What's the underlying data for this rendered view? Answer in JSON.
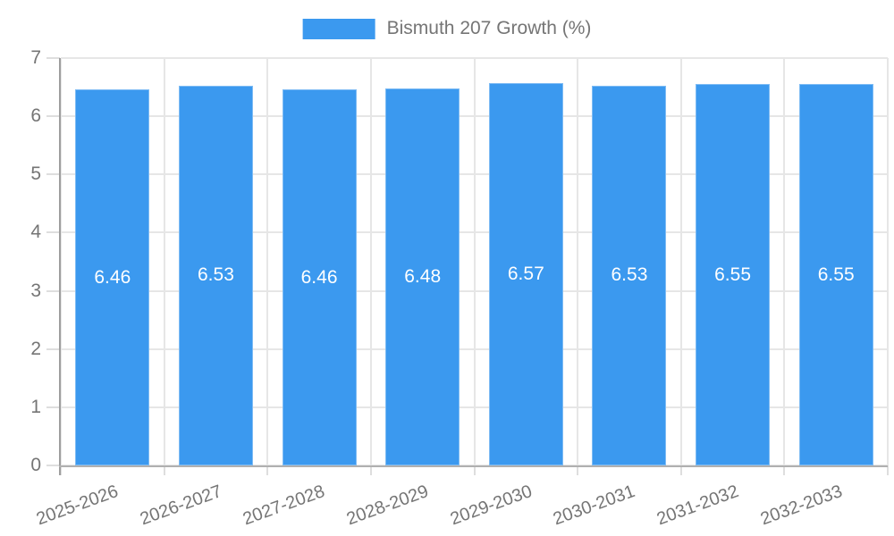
{
  "chart_data": {
    "type": "bar",
    "title": "Bismuth 207 Growth (%)",
    "categories": [
      "2025-2026",
      "2026-2027",
      "2027-2028",
      "2028-2029",
      "2029-2030",
      "2030-2031",
      "2031-2032",
      "2032-2033"
    ],
    "values": [
      6.46,
      6.53,
      6.46,
      6.48,
      6.57,
      6.53,
      6.55,
      6.55
    ],
    "value_labels": [
      "6.46",
      "6.53",
      "6.46",
      "6.48",
      "6.57",
      "6.53",
      "6.55",
      "6.55"
    ],
    "xlabel": "",
    "ylabel": "",
    "ylim": [
      0,
      7
    ],
    "yticks": [
      0,
      1,
      2,
      3,
      4,
      5,
      6,
      7
    ],
    "grid": true,
    "x_tick_rotation_deg": -20,
    "legend": {
      "position": "top",
      "label": "Bismuth 207 Growth (%)"
    },
    "colors": {
      "bar": "#3b99ef",
      "grid": "#e6e6e6",
      "tick": "#dedede",
      "axis_left": "#9e9e9e",
      "axis_bottom": "#b0b0b0",
      "text": "#757575",
      "value_label": "#ffffff"
    }
  }
}
